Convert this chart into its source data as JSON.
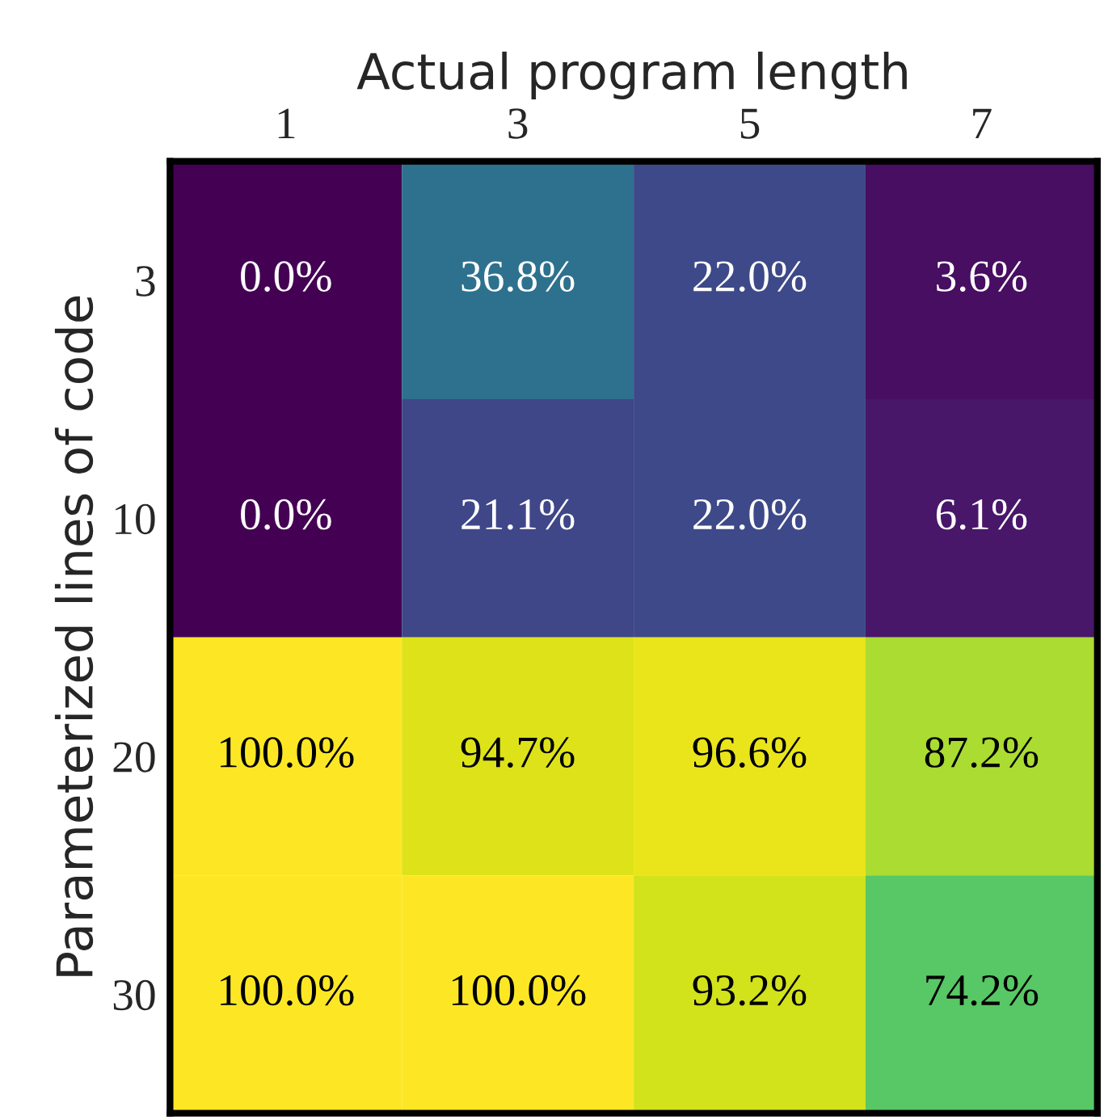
{
  "chart_data": {
    "type": "heatmap",
    "xlabel": "Actual program length",
    "ylabel": "Parameterized lines of code",
    "categories": [
      "1",
      "3",
      "5",
      "7"
    ],
    "y_categories": [
      "3",
      "10",
      "20",
      "30"
    ],
    "cells": [
      [
        0.0,
        36.8,
        22.0,
        3.6
      ],
      [
        0.0,
        21.1,
        22.0,
        6.1
      ],
      [
        100.0,
        94.7,
        96.6,
        87.2
      ],
      [
        100.0,
        100.0,
        93.2,
        74.2
      ]
    ],
    "cell_labels": [
      [
        "0.0%",
        "36.8%",
        "22.0%",
        "3.6%"
      ],
      [
        "0.0%",
        "21.1%",
        "22.0%",
        "6.1%"
      ],
      [
        "100.0%",
        "94.7%",
        "96.6%",
        "87.2%"
      ],
      [
        "100.0%",
        "100.0%",
        "93.2%",
        "74.2%"
      ]
    ]
  }
}
